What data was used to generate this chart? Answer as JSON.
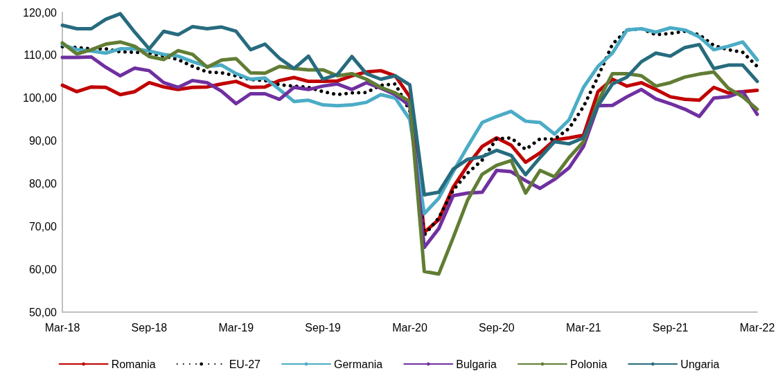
{
  "chart_data": {
    "type": "line",
    "categories": [
      "Mar-18",
      null,
      null,
      null,
      null,
      null,
      "Sep-18",
      null,
      null,
      null,
      null,
      null,
      "Mar-19",
      null,
      null,
      null,
      null,
      null,
      "Sep-19",
      null,
      null,
      null,
      null,
      null,
      "Mar-20",
      null,
      null,
      null,
      null,
      null,
      "Sep-20",
      null,
      null,
      null,
      null,
      null,
      "Mar-21",
      null,
      null,
      null,
      null,
      null,
      "Sep-21",
      null,
      null,
      null,
      null,
      null,
      "Mar-22"
    ],
    "series": [
      {
        "name": "Romania",
        "color": "#c00000",
        "line_style": "solid",
        "values": [
          103,
          101.5,
          102.6,
          102.5,
          100.8,
          101.5,
          103.6,
          102.6,
          102,
          102.5,
          102.6,
          103.3,
          103.9,
          102.5,
          102.6,
          104.1,
          104.8,
          103.9,
          103.9,
          104,
          105.2,
          106.1,
          106.4,
          105.2,
          100.3,
          68.6,
          71.6,
          79.2,
          84.3,
          88.7,
          90.7,
          89,
          85,
          87.2,
          90.2,
          90.7,
          91.3,
          101.5,
          104.4,
          102.8,
          103.6,
          102,
          100.3,
          99.7,
          99.5,
          102.5,
          101.2,
          101.5,
          101.8
        ]
      },
      {
        "name": "EU-27",
        "color": "#000000",
        "line_style": "dotted",
        "values": [
          112,
          111.8,
          111.5,
          111.5,
          110.8,
          110.7,
          110.5,
          109.8,
          109,
          107.4,
          106.1,
          105.9,
          105.2,
          104.3,
          104.1,
          103.1,
          102.8,
          102.5,
          101.5,
          100.8,
          101.2,
          101.3,
          103,
          103.3,
          97,
          68,
          72,
          78.5,
          82.5,
          85.5,
          90.5,
          90.7,
          88,
          90.5,
          90.4,
          92.9,
          98,
          105,
          112.6,
          115.9,
          116.2,
          114.8,
          115.1,
          115.6,
          114.8,
          112.3,
          111.3,
          110.7,
          107.4
        ]
      },
      {
        "name": "Germania",
        "color": "#4bacc6",
        "line_style": "solid",
        "values": [
          112.5,
          111.3,
          111,
          110.5,
          111.5,
          111.5,
          111,
          110.2,
          109.8,
          108.5,
          107.4,
          107.7,
          105.7,
          104.4,
          104.7,
          102,
          99.2,
          99.5,
          98.4,
          98.2,
          98.4,
          99,
          100.8,
          100,
          95,
          73,
          76.6,
          82.8,
          88.7,
          94.3,
          95.7,
          96.9,
          94.6,
          94.3,
          91.6,
          94.9,
          102.5,
          107.4,
          110.5,
          115.9,
          116.2,
          115.4,
          116.4,
          115.9,
          114.3,
          111.3,
          112.1,
          113.1,
          108.9
        ]
      },
      {
        "name": "Bulgaria",
        "color": "#7030a0",
        "line_style": "solid",
        "values": [
          109.5,
          109.5,
          109.6,
          107.2,
          105.2,
          107,
          106.4,
          103.6,
          102.5,
          104.1,
          103.6,
          101.6,
          98.7,
          101,
          101,
          99.7,
          102.5,
          102,
          102.8,
          103.3,
          102,
          103.6,
          102.3,
          100.8,
          98.2,
          65.1,
          69.5,
          77.2,
          77.8,
          78,
          83.1,
          82.8,
          80.7,
          78.9,
          81,
          83.7,
          88.7,
          98.2,
          98.3,
          100.3,
          102,
          99.8,
          98.7,
          97.4,
          95.7,
          100,
          100.3,
          101.5,
          96.2
        ]
      },
      {
        "name": "Polonia",
        "color": "#617d34",
        "line_style": "solid",
        "values": [
          112.9,
          110.3,
          111.3,
          112.6,
          113.1,
          112.1,
          109.7,
          109,
          111.1,
          110.2,
          107.2,
          108.9,
          109.2,
          105.9,
          105.8,
          107.4,
          106.9,
          106.6,
          106.6,
          105.2,
          105.7,
          104.4,
          102.5,
          101.2,
          99.2,
          59.5,
          58.9,
          67.4,
          76.2,
          82.2,
          84.3,
          85.4,
          77.8,
          83.1,
          81.6,
          86.1,
          89.8,
          99.2,
          105.7,
          105.7,
          105.2,
          102.8,
          103.6,
          104.9,
          105.6,
          106.1,
          102.3,
          100.3,
          97.4
        ]
      },
      {
        "name": "Ungaria",
        "color": "#276b7e",
        "line_style": "solid",
        "values": [
          117,
          116.2,
          116.2,
          118.4,
          119.7,
          115.4,
          111.5,
          115.6,
          114.8,
          116.7,
          116.2,
          116.6,
          115.6,
          111.3,
          112.6,
          109.3,
          106.9,
          109.8,
          104.4,
          105.5,
          109.7,
          105.7,
          104.4,
          105.2,
          103.1,
          77.4,
          78,
          83.4,
          85.7,
          86.3,
          87.8,
          86.6,
          82.1,
          86.1,
          89.8,
          89.3,
          90.7,
          98.2,
          103.3,
          104.9,
          108.5,
          110.5,
          109.8,
          111.8,
          112.5,
          106.9,
          107.7,
          107.7,
          103.9
        ]
      }
    ],
    "ylim": [
      50,
      120
    ],
    "yticks": [
      {
        "value": 50,
        "label": "50,00"
      },
      {
        "value": 60,
        "label": "60,00"
      },
      {
        "value": 70,
        "label": "70,00"
      },
      {
        "value": 80,
        "label": "80,00"
      },
      {
        "value": 90,
        "label": "90,00"
      },
      {
        "value": 100,
        "label": "100,00"
      },
      {
        "value": 110,
        "label": "110,00"
      },
      {
        "value": 120,
        "label": "120,00"
      }
    ],
    "grid": false,
    "legend": "bottom",
    "marker": "none"
  }
}
